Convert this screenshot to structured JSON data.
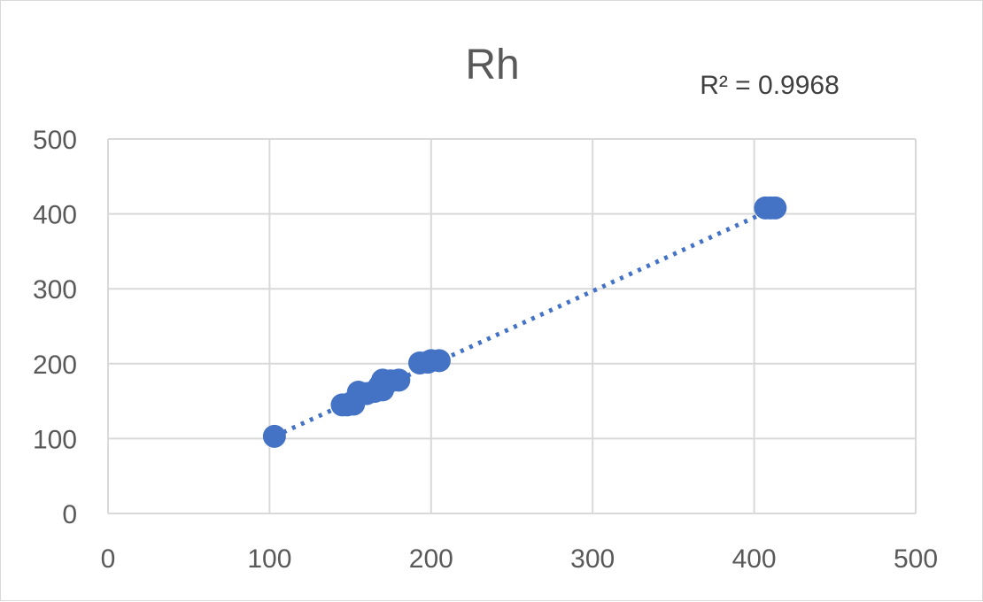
{
  "chart_data": {
    "type": "scatter",
    "title": "Rh",
    "xlabel": "",
    "ylabel": "",
    "xlim": [
      0,
      500
    ],
    "ylim": [
      0,
      500
    ],
    "xticks": [
      0,
      100,
      200,
      300,
      400,
      500
    ],
    "yticks": [
      0,
      100,
      200,
      300,
      400,
      500
    ],
    "grid": true,
    "legend": "none",
    "series_color": "#4472c4",
    "points": [
      {
        "x": 103,
        "y": 103
      },
      {
        "x": 145,
        "y": 145
      },
      {
        "x": 148,
        "y": 145
      },
      {
        "x": 150,
        "y": 147
      },
      {
        "x": 152,
        "y": 146
      },
      {
        "x": 155,
        "y": 162
      },
      {
        "x": 160,
        "y": 160
      },
      {
        "x": 165,
        "y": 163
      },
      {
        "x": 168,
        "y": 170
      },
      {
        "x": 170,
        "y": 165
      },
      {
        "x": 170,
        "y": 178
      },
      {
        "x": 172,
        "y": 175
      },
      {
        "x": 175,
        "y": 177
      },
      {
        "x": 180,
        "y": 178
      },
      {
        "x": 193,
        "y": 201
      },
      {
        "x": 198,
        "y": 202
      },
      {
        "x": 200,
        "y": 204
      },
      {
        "x": 205,
        "y": 204
      },
      {
        "x": 407,
        "y": 408
      },
      {
        "x": 410,
        "y": 408
      },
      {
        "x": 413,
        "y": 408
      }
    ],
    "trendline": {
      "style": "dotted",
      "color": "#4472c4",
      "from": {
        "x": 103,
        "y": 103
      },
      "to": {
        "x": 413,
        "y": 408
      }
    },
    "annotations": [
      "R² = 0.9968"
    ]
  }
}
